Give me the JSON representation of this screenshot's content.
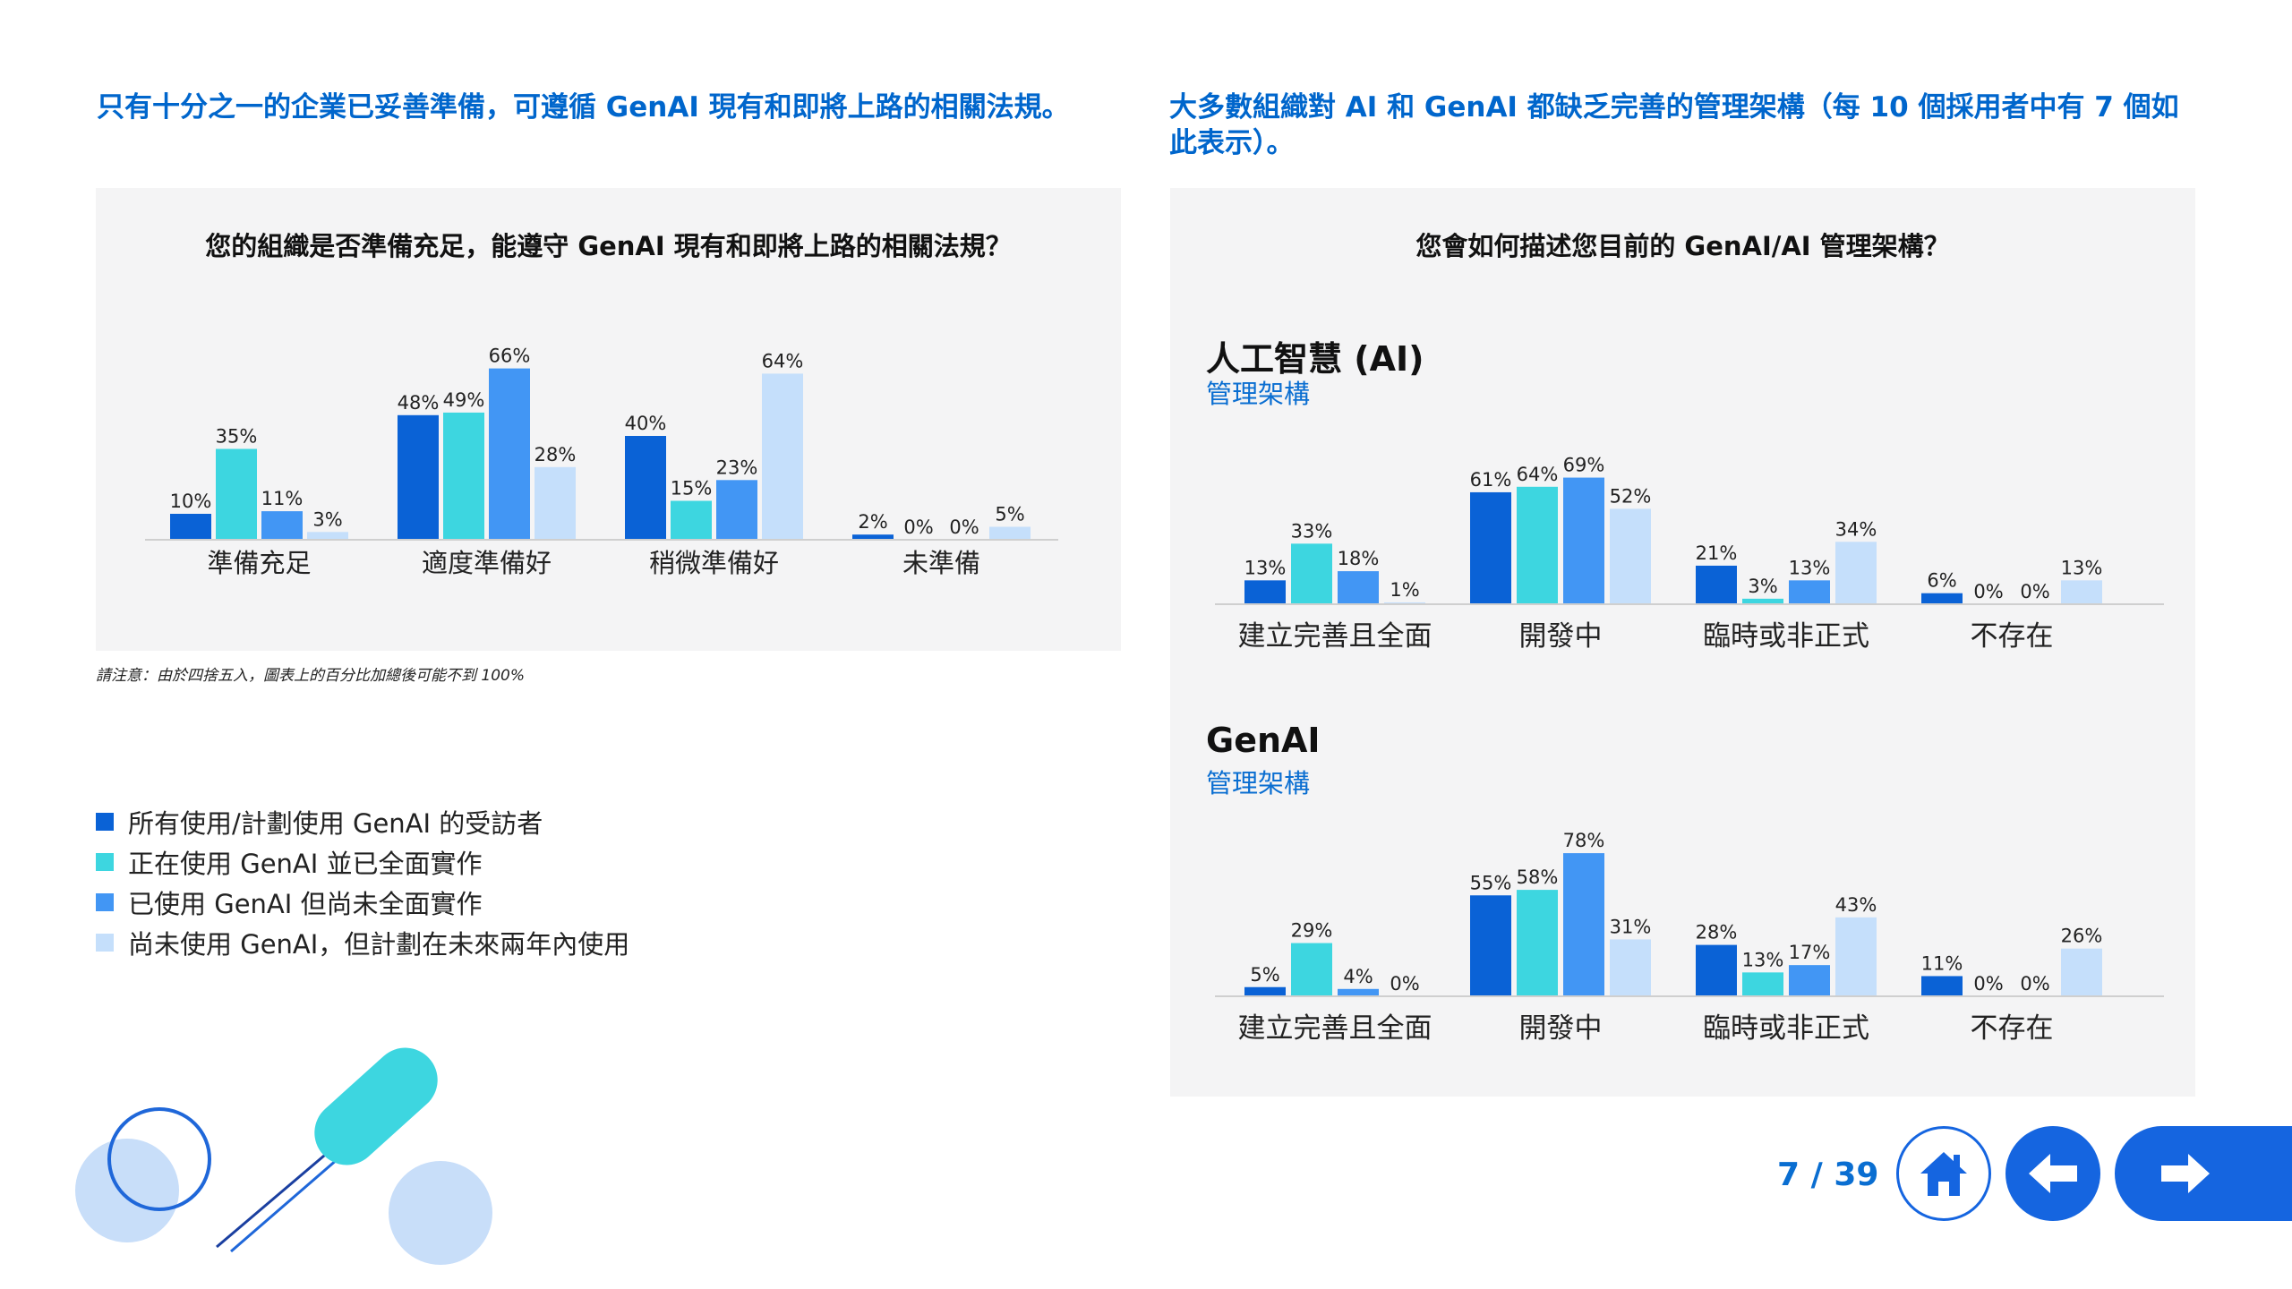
{
  "headline_left": "只有十分之一的企業已妥善準備，可遵循 GenAI 現有和即將上路的相關法規。",
  "headline_right": "大多數組織對 AI 和 GenAI 都缺乏完善的管理架構（每 10 個採用者中有 7 個如此表示）。",
  "left_panel_title": "您的組織是否準備充足，能遵守 GenAI 現有和即將上路的相關法規？",
  "right_panel_title": "您會如何描述您目前的 GenAI/AI 管理架構？",
  "ai_section": {
    "title": "人工智慧 (AI)",
    "subtitle": "管理架構"
  },
  "genai_section": {
    "title": "GenAI",
    "subtitle": "管理架構"
  },
  "footnote": "請注意：由於四捨五入，圖表上的百分比加總後可能不到 100%",
  "legend": [
    {
      "label": "所有使用/計劃使用 GenAI 的受訪者",
      "color": "#0a62d6"
    },
    {
      "label": "正在使用 GenAI 並已全面實作",
      "color": "#3dd6e0"
    },
    {
      "label": "已使用 GenAI 但尚未全面實作",
      "color": "#4296f4"
    },
    {
      "label": "尚未使用 GenAI，但計劃在未來兩年內使用",
      "color": "#c5dffb"
    }
  ],
  "chart_data": [
    {
      "type": "bar",
      "title": "您的組織是否準備充足，能遵守 GenAI 現有和即將上路的相關法規？",
      "categories": [
        "準備充足",
        "適度準備好",
        "稍微準備好",
        "未準備"
      ],
      "unit": "%",
      "series": [
        {
          "name": "所有使用/計劃使用 GenAI 的受訪者",
          "values": [
            10,
            48,
            40,
            2
          ]
        },
        {
          "name": "正在使用 GenAI 並已全面實作",
          "values": [
            35,
            49,
            15,
            0
          ]
        },
        {
          "name": "已使用 GenAI 但尚未全面實作",
          "values": [
            11,
            66,
            23,
            0
          ]
        },
        {
          "name": "尚未使用 GenAI，但計劃在未來兩年內使用",
          "values": [
            3,
            28,
            64,
            5
          ]
        }
      ]
    },
    {
      "type": "bar",
      "title": "人工智慧 (AI)",
      "categories": [
        "建立完善且全面",
        "開發中",
        "臨時或非正式",
        "不存在"
      ],
      "unit": "%",
      "series": [
        {
          "name": "所有使用/計劃使用 GenAI 的受訪者",
          "values": [
            13,
            61,
            21,
            6
          ]
        },
        {
          "name": "正在使用 GenAI 並已全面實作",
          "values": [
            33,
            64,
            3,
            0
          ]
        },
        {
          "name": "已使用 GenAI 但尚未全面實作",
          "values": [
            18,
            69,
            13,
            0
          ]
        },
        {
          "name": "尚未使用 GenAI，但計劃在未來兩年內使用",
          "values": [
            1,
            52,
            34,
            13
          ]
        }
      ]
    },
    {
      "type": "bar",
      "title": "GenAI",
      "categories": [
        "建立完善且全面",
        "開發中",
        "臨時或非正式",
        "不存在"
      ],
      "unit": "%",
      "series": [
        {
          "name": "所有使用/計劃使用 GenAI 的受訪者",
          "values": [
            5,
            55,
            28,
            11
          ]
        },
        {
          "name": "正在使用 GenAI 並已全面實作",
          "values": [
            29,
            58,
            13,
            0
          ]
        },
        {
          "name": "已使用 GenAI 但尚未全面實作",
          "values": [
            4,
            78,
            17,
            0
          ]
        },
        {
          "name": "尚未使用 GenAI，但計劃在未來兩年內使用",
          "values": [
            0,
            31,
            43,
            26
          ]
        }
      ]
    }
  ],
  "pagination": {
    "current": "7",
    "separator": "/",
    "total": "39"
  },
  "nav": {
    "home_icon": "home-icon",
    "prev_icon": "arrow-left-icon",
    "next_icon": "arrow-right-icon"
  }
}
